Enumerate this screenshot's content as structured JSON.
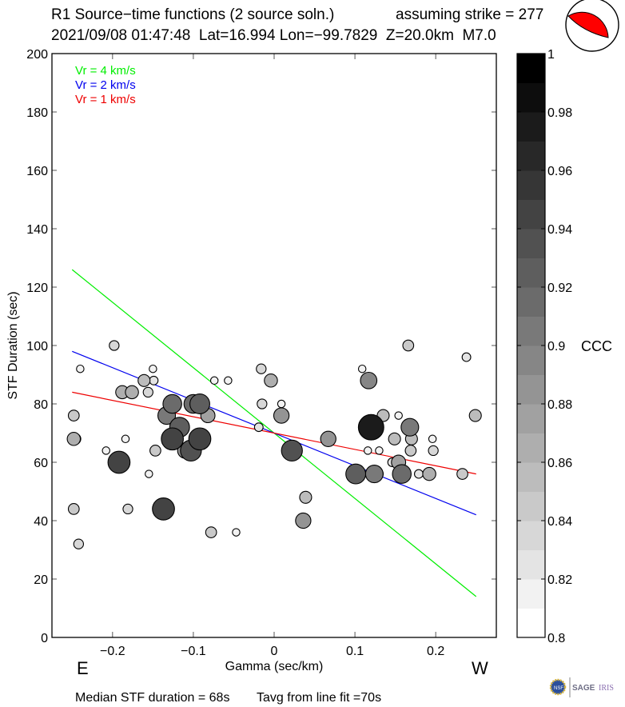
{
  "header": {
    "title": "R1 Source−time functions (2 source soln.)",
    "strike_text": "assuming strike = 277",
    "event_info": "2021/09/08 01:47:48  Lat=16.994 Lon=−99.7829  Z=20.0km  M7.0"
  },
  "footer": {
    "median_text": "Median STF duration = 68s",
    "tavg_text": "Tavg from line fit =70s",
    "logo_text": "SAGE",
    "logo_text2": "IRIS"
  },
  "colors": {
    "vr4": "#00ee00",
    "vr2": "#0000ee",
    "vr1": "#ee0000",
    "beachball": "#ff0000"
  },
  "chart_data": {
    "type": "scatter",
    "title": "R1 Source−time functions (2 source soln.)",
    "xlabel": "Gamma (sec/km)",
    "ylabel": "STF Duration (sec)",
    "xlim": [
      -0.275,
      0.275
    ],
    "ylim": [
      0,
      200
    ],
    "xticks": [
      -0.2,
      -0.1,
      0,
      0.1,
      0.2
    ],
    "xtick_labels": [
      "−0.2",
      "−0.1",
      "0",
      "0.1",
      "0.2"
    ],
    "yticks": [
      0,
      20,
      40,
      60,
      80,
      100,
      120,
      140,
      160,
      180,
      200
    ],
    "ytick_labels": [
      "0",
      "20",
      "40",
      "60",
      "80",
      "100",
      "120",
      "140",
      "160",
      "180",
      "200"
    ],
    "x_left_label": "E",
    "x_right_label": "W",
    "legend": [
      {
        "label": "Vr = 4 km/s",
        "color_key": "vr4"
      },
      {
        "label": "Vr = 2 km/s",
        "color_key": "vr2"
      },
      {
        "label": "Vr = 1 km/s",
        "color_key": "vr1"
      }
    ],
    "legend_position": "top-left",
    "lines": [
      {
        "name": "Vr = 4 km/s",
        "x": [
          -0.25,
          0.25
        ],
        "y": [
          126,
          14
        ],
        "color_key": "vr4"
      },
      {
        "name": "Vr = 2 km/s",
        "x": [
          -0.25,
          0.25
        ],
        "y": [
          98,
          42
        ],
        "color_key": "vr2"
      },
      {
        "name": "Vr = 1 km/s",
        "x": [
          -0.25,
          0.25
        ],
        "y": [
          84,
          56
        ],
        "color_key": "vr1"
      }
    ],
    "colorbar": {
      "label": "CCC",
      "range": [
        0.8,
        1.0
      ],
      "levels": 20,
      "tick_values": [
        0.8,
        0.82,
        0.84,
        0.86,
        0.88,
        0.9,
        0.92,
        0.94,
        0.96,
        0.98,
        1
      ],
      "tick_labels": [
        "0.8",
        "0.82",
        "0.84",
        "0.86",
        "0.88",
        "0.9",
        "0.92",
        "0.94",
        "0.96",
        "0.98",
        "1"
      ]
    },
    "points_columns": [
      "gamma",
      "duration",
      "ccc"
    ],
    "points": [
      [
        -0.198,
        100,
        0.83
      ],
      [
        -0.24,
        92,
        0.81
      ],
      [
        -0.15,
        92,
        0.81
      ],
      [
        -0.161,
        88,
        0.85
      ],
      [
        -0.149,
        88,
        0.82
      ],
      [
        -0.188,
        84,
        0.86
      ],
      [
        -0.176,
        84,
        0.86
      ],
      [
        -0.156,
        84,
        0.83
      ],
      [
        -0.248,
        76,
        0.84
      ],
      [
        -0.248,
        68,
        0.86
      ],
      [
        -0.246,
        68,
        0.84
      ],
      [
        -0.184,
        68,
        0.81
      ],
      [
        -0.208,
        64,
        0.81
      ],
      [
        -0.192,
        60,
        0.94
      ],
      [
        -0.155,
        56,
        0.81
      ],
      [
        -0.248,
        44,
        0.84
      ],
      [
        -0.181,
        44,
        0.83
      ],
      [
        -0.137,
        44,
        0.94
      ],
      [
        -0.078,
        36,
        0.84
      ],
      [
        -0.047,
        36,
        0.81
      ],
      [
        -0.242,
        32,
        0.83
      ],
      [
        -0.1,
        80,
        0.91
      ],
      [
        -0.126,
        80,
        0.91
      ],
      [
        -0.092,
        80,
        0.92
      ],
      [
        -0.133,
        76,
        0.9
      ],
      [
        -0.133,
        76,
        0.84
      ],
      [
        -0.082,
        76,
        0.87
      ],
      [
        -0.117,
        72,
        0.92
      ],
      [
        -0.103,
        64,
        0.93
      ],
      [
        -0.11,
        64,
        0.88
      ],
      [
        -0.126,
        68,
        0.94
      ],
      [
        -0.119,
        68,
        0.83
      ],
      [
        -0.092,
        68,
        0.94
      ],
      [
        -0.147,
        64,
        0.84
      ],
      [
        -0.016,
        92,
        0.83
      ],
      [
        -0.057,
        88,
        0.81
      ],
      [
        -0.074,
        88,
        0.81
      ],
      [
        -0.004,
        88,
        0.86
      ],
      [
        -0.015,
        80,
        0.83
      ],
      [
        0.009,
        80,
        0.81
      ],
      [
        0.009,
        76,
        0.88
      ],
      [
        -0.019,
        72,
        0.82
      ],
      [
        0.067,
        68,
        0.88
      ],
      [
        0.022,
        64,
        0.93
      ],
      [
        0.039,
        48,
        0.85
      ],
      [
        0.036,
        40,
        0.88
      ],
      [
        0.166,
        100,
        0.84
      ],
      [
        0.238,
        96,
        0.82
      ],
      [
        0.109,
        92,
        0.81
      ],
      [
        0.117,
        88,
        0.89
      ],
      [
        0.135,
        76,
        0.85
      ],
      [
        0.154,
        76,
        0.81
      ],
      [
        0.249,
        76,
        0.85
      ],
      [
        0.12,
        72,
        0.97
      ],
      [
        0.168,
        72,
        0.9
      ],
      [
        0.149,
        68,
        0.85
      ],
      [
        0.17,
        68,
        0.85
      ],
      [
        0.196,
        68,
        0.81
      ],
      [
        0.116,
        64,
        0.81
      ],
      [
        0.13,
        64,
        0.81
      ],
      [
        0.169,
        64,
        0.84
      ],
      [
        0.197,
        64,
        0.83
      ],
      [
        0.154,
        60,
        0.87
      ],
      [
        0.146,
        60,
        0.82
      ],
      [
        0.101,
        56,
        0.92
      ],
      [
        0.124,
        56,
        0.9
      ],
      [
        0.129,
        56,
        0.83
      ],
      [
        0.158,
        56,
        0.91
      ],
      [
        0.179,
        56,
        0.82
      ],
      [
        0.192,
        56,
        0.86
      ],
      [
        0.233,
        56,
        0.84
      ]
    ]
  }
}
